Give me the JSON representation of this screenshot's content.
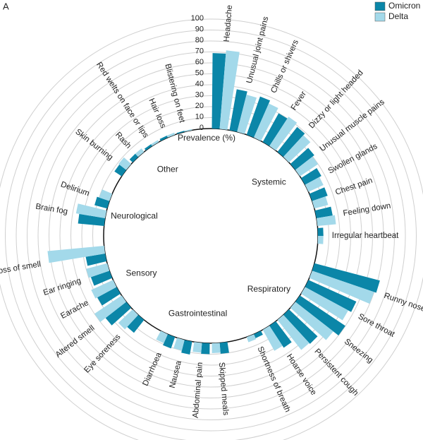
{
  "chart_data": {
    "type": "radial-bar",
    "panel_label": "A",
    "axis_label": "Prevalence (%)",
    "ylim": [
      0,
      100
    ],
    "yticks": [
      0,
      10,
      20,
      30,
      40,
      50,
      60,
      70,
      80,
      90,
      100
    ],
    "grid": true,
    "legend_position": "top-right",
    "series": [
      {
        "name": "Omicron",
        "color": "#0b86a8",
        "values": [
          [
            69,
            38,
            37,
            30,
            29,
            22,
            17,
            15,
            15,
            5
          ],
          [
            62,
            48,
            50,
            36,
            24,
            4
          ],
          [
            10,
            10,
            12,
            11
          ],
          [
            15,
            24,
            20,
            18,
            18
          ],
          [
            24,
            12
          ],
          [
            8,
            4,
            2,
            2,
            1
          ]
        ]
      },
      {
        "name": "Delta",
        "color": "#a3d9ea",
        "values": [
          [
            72,
            35,
            34,
            32,
            27,
            20,
            15,
            13,
            17,
            5
          ],
          [
            60,
            45,
            44,
            35,
            22,
            5
          ],
          [
            9,
            9,
            10,
            9
          ],
          [
            18,
            30,
            22,
            20,
            52
          ],
          [
            27,
            10
          ],
          [
            9,
            4,
            2,
            2,
            1
          ]
        ]
      }
    ],
    "groups": [
      {
        "name": "Systemic",
        "categories": [
          "Headache",
          "Unusual joint pains",
          "Chills or shivers",
          "Fever",
          "Dizzy or light headed",
          "Unusual muscle pains",
          "Swollen glands",
          "Chest pain",
          "Feeling down",
          "Irregular heartbeat"
        ]
      },
      {
        "name": "Respiratory",
        "categories": [
          "Runny nose",
          "Sore throat",
          "Sneezing",
          "Persistent cough",
          "Hoarse voice",
          "Shortness of breath"
        ]
      },
      {
        "name": "Gastrointestinal",
        "categories": [
          "Skipped meals",
          "Abdominal pain",
          "Nausea",
          "Diarrhoea"
        ]
      },
      {
        "name": "Sensory",
        "categories": [
          "Eye soreness",
          "Altered smell",
          "Earache",
          "Ear ringing",
          "Loss of smell"
        ]
      },
      {
        "name": "Neurological",
        "categories": [
          "Brain fog",
          "Delirium"
        ]
      },
      {
        "name": "Other",
        "categories": [
          "Skin burning",
          "Rash",
          "Red welts on face or lips",
          "Hair loss",
          "Blistering on feet"
        ]
      }
    ]
  }
}
